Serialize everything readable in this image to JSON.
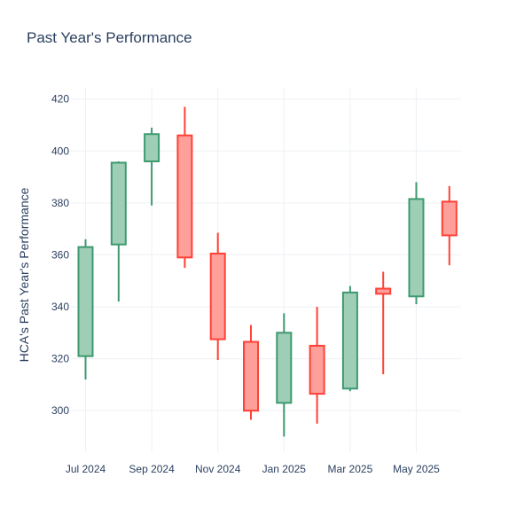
{
  "chart_data": {
    "type": "candlestick",
    "title": "Past Year's Performance",
    "xlabel": "",
    "ylabel": "HCA's Past Year's Performance",
    "ylim": [
      284,
      424
    ],
    "yticks": [
      300,
      320,
      340,
      360,
      380,
      400,
      420
    ],
    "xticks": [
      {
        "label": "Jul 2024",
        "month_index": 0
      },
      {
        "label": "Sep 2024",
        "month_index": 2
      },
      {
        "label": "Nov 2024",
        "month_index": 4
      },
      {
        "label": "Jan 2025",
        "month_index": 6
      },
      {
        "label": "Mar 2025",
        "month_index": 8
      },
      {
        "label": "May 2025",
        "month_index": 10
      }
    ],
    "grid": true,
    "colors": {
      "increasing": "#3d9970",
      "decreasing": "#ff4136",
      "increasing_fill": "#9ecfb6",
      "decreasing_fill": "#ff9f9a"
    },
    "candles": [
      {
        "month": "2024-07",
        "open": 321,
        "high": 366,
        "low": 312,
        "close": 363
      },
      {
        "month": "2024-08",
        "open": 364,
        "high": 396,
        "low": 342,
        "close": 395.5
      },
      {
        "month": "2024-09",
        "open": 396,
        "high": 409,
        "low": 379,
        "close": 406.5
      },
      {
        "month": "2024-10",
        "open": 406,
        "high": 417,
        "low": 355,
        "close": 359
      },
      {
        "month": "2024-11",
        "open": 360.5,
        "high": 368.5,
        "low": 319.5,
        "close": 327.5
      },
      {
        "month": "2024-12",
        "open": 326.5,
        "high": 333,
        "low": 296.5,
        "close": 300
      },
      {
        "month": "2025-01",
        "open": 303,
        "high": 337.5,
        "low": 290,
        "close": 330
      },
      {
        "month": "2025-02",
        "open": 325,
        "high": 340,
        "low": 295,
        "close": 306.5
      },
      {
        "month": "2025-03",
        "open": 308.5,
        "high": 348,
        "low": 307.5,
        "close": 345.5
      },
      {
        "month": "2025-04",
        "open": 347,
        "high": 353.5,
        "low": 314,
        "close": 345
      },
      {
        "month": "2025-05",
        "open": 344,
        "high": 388,
        "low": 341,
        "close": 381.5
      },
      {
        "month": "2025-06",
        "open": 380.5,
        "high": 386.5,
        "low": 356,
        "close": 367.5
      }
    ]
  }
}
